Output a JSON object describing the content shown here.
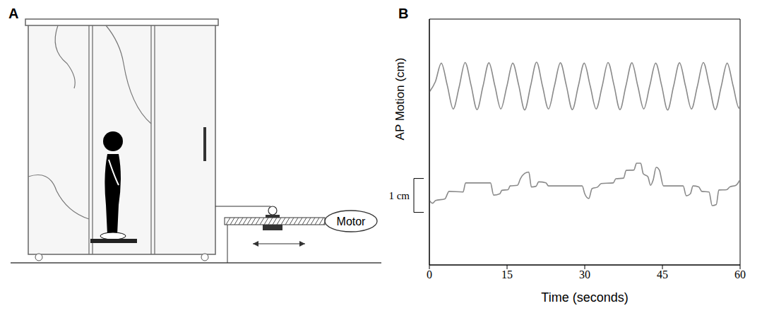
{
  "panel_a": {
    "label": "A",
    "motor_label": "Motor"
  },
  "panel_b": {
    "label": "B"
  },
  "chart_data": {
    "type": "line",
    "x_label": "Time (seconds)",
    "y_label": "AP Motion (cm)",
    "xlim": [
      0,
      60
    ],
    "xticks": [
      0,
      15,
      30,
      45,
      60
    ],
    "ylim": [
      0,
      7.25
    ],
    "tick_labels": "x",
    "grid": false,
    "scale_bar": {
      "values": [
        1.55,
        2.55
      ],
      "label": "1 cm"
    },
    "series": [
      {
        "color": "#8a8a8a",
        "x": [
          0,
          1.15,
          2.3,
          3.45,
          4.6,
          5.75,
          6.9,
          8.05,
          9.2,
          10.35,
          11.5,
          12.65,
          13.8,
          14.95,
          16.1,
          17.25,
          18.4,
          19.55,
          20.7,
          21.85,
          23,
          24.15,
          25.3,
          26.45,
          27.6,
          28.75,
          29.9,
          31.05,
          32.2,
          33.35,
          34.5,
          35.65,
          36.8,
          37.95,
          39.1,
          40.25,
          41.4,
          42.55,
          43.7,
          44.85,
          46,
          47.15,
          48.3,
          49.45,
          50.6,
          51.75,
          52.9,
          54.05,
          55.2,
          56.35,
          57.5,
          58.65,
          59.8,
          60
        ],
        "values": [
          5.1,
          5.4,
          5.95,
          5.3,
          4.6,
          5.25,
          5.97,
          5.3,
          4.58,
          5.27,
          5.96,
          5.28,
          4.6,
          5.26,
          5.95,
          5.3,
          4.57,
          5.28,
          5.98,
          5.27,
          4.6,
          5.28,
          5.96,
          5.29,
          4.58,
          5.27,
          5.95,
          5.28,
          4.6,
          5.26,
          5.97,
          5.3,
          4.58,
          5.28,
          5.96,
          5.27,
          4.6,
          5.28,
          5.95,
          5.29,
          4.57,
          5.27,
          5.96,
          5.28,
          4.6,
          5.27,
          5.97,
          5.3,
          4.58,
          5.26,
          5.95,
          5.28,
          4.62,
          4.75
        ]
      },
      {
        "color": "#8a8a8a",
        "x": [
          0,
          0.6,
          1.2,
          3.0,
          3.8,
          6.5,
          7.0,
          11.8,
          12.4,
          13.6,
          14.0,
          15.2,
          15.6,
          17.0,
          17.6,
          18.4,
          19.2,
          19.7,
          20.6,
          21.1,
          22.5,
          23.0,
          29.5,
          30.0,
          30.8,
          31.4,
          32.5,
          33.2,
          35.5,
          36.0,
          37.5,
          38.0,
          39.5,
          40.0,
          40.8,
          41.3,
          42.2,
          42.7,
          43.2,
          43.8,
          44.4,
          45.2,
          49.0,
          49.6,
          50.4,
          50.9,
          52.0,
          52.6,
          54.0,
          54.6,
          55.4,
          55.9,
          57.4,
          58.0,
          59.2,
          60
        ],
        "values": [
          1.9,
          1.82,
          1.9,
          1.95,
          2.17,
          2.15,
          2.42,
          2.42,
          2.06,
          2.1,
          2.2,
          2.22,
          2.33,
          2.35,
          2.55,
          2.7,
          2.74,
          2.3,
          2.32,
          2.45,
          2.42,
          2.33,
          2.33,
          2.1,
          1.96,
          2.25,
          2.3,
          2.4,
          2.42,
          2.54,
          2.56,
          2.79,
          2.8,
          3.0,
          3.0,
          2.69,
          2.6,
          2.35,
          2.5,
          2.88,
          2.8,
          2.33,
          2.33,
          2.04,
          2.1,
          2.33,
          2.3,
          2.17,
          2.15,
          1.75,
          1.78,
          2.21,
          2.22,
          2.3,
          2.35,
          2.52
        ]
      }
    ]
  }
}
